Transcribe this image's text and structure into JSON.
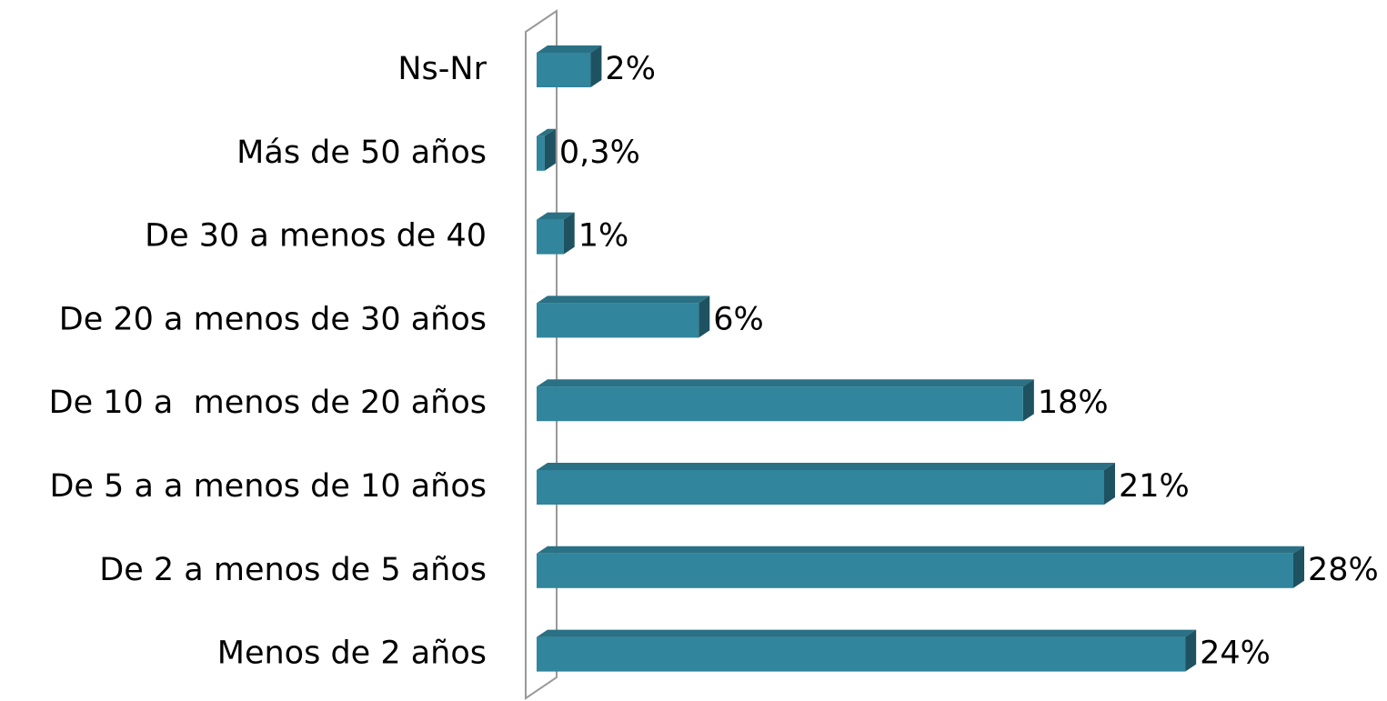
{
  "chart_data": {
    "type": "bar",
    "orientation": "horizontal",
    "categories": [
      "Ns-Nr",
      "Más de 50 años",
      "De 30 a menos de 40",
      "De 20 a menos de 30 años",
      "De 10 a  menos de 20 años",
      "De 5 a a menos de 10 años",
      "De 2 a menos de 5 años",
      "Menos de 2 años"
    ],
    "values": [
      2,
      0.3,
      1,
      6,
      18,
      21,
      28,
      24
    ],
    "value_labels": [
      "2%",
      "0,3%",
      "1%",
      "6%",
      "18%",
      "21%",
      "28%",
      "24%"
    ],
    "color": "#31859c"
  }
}
